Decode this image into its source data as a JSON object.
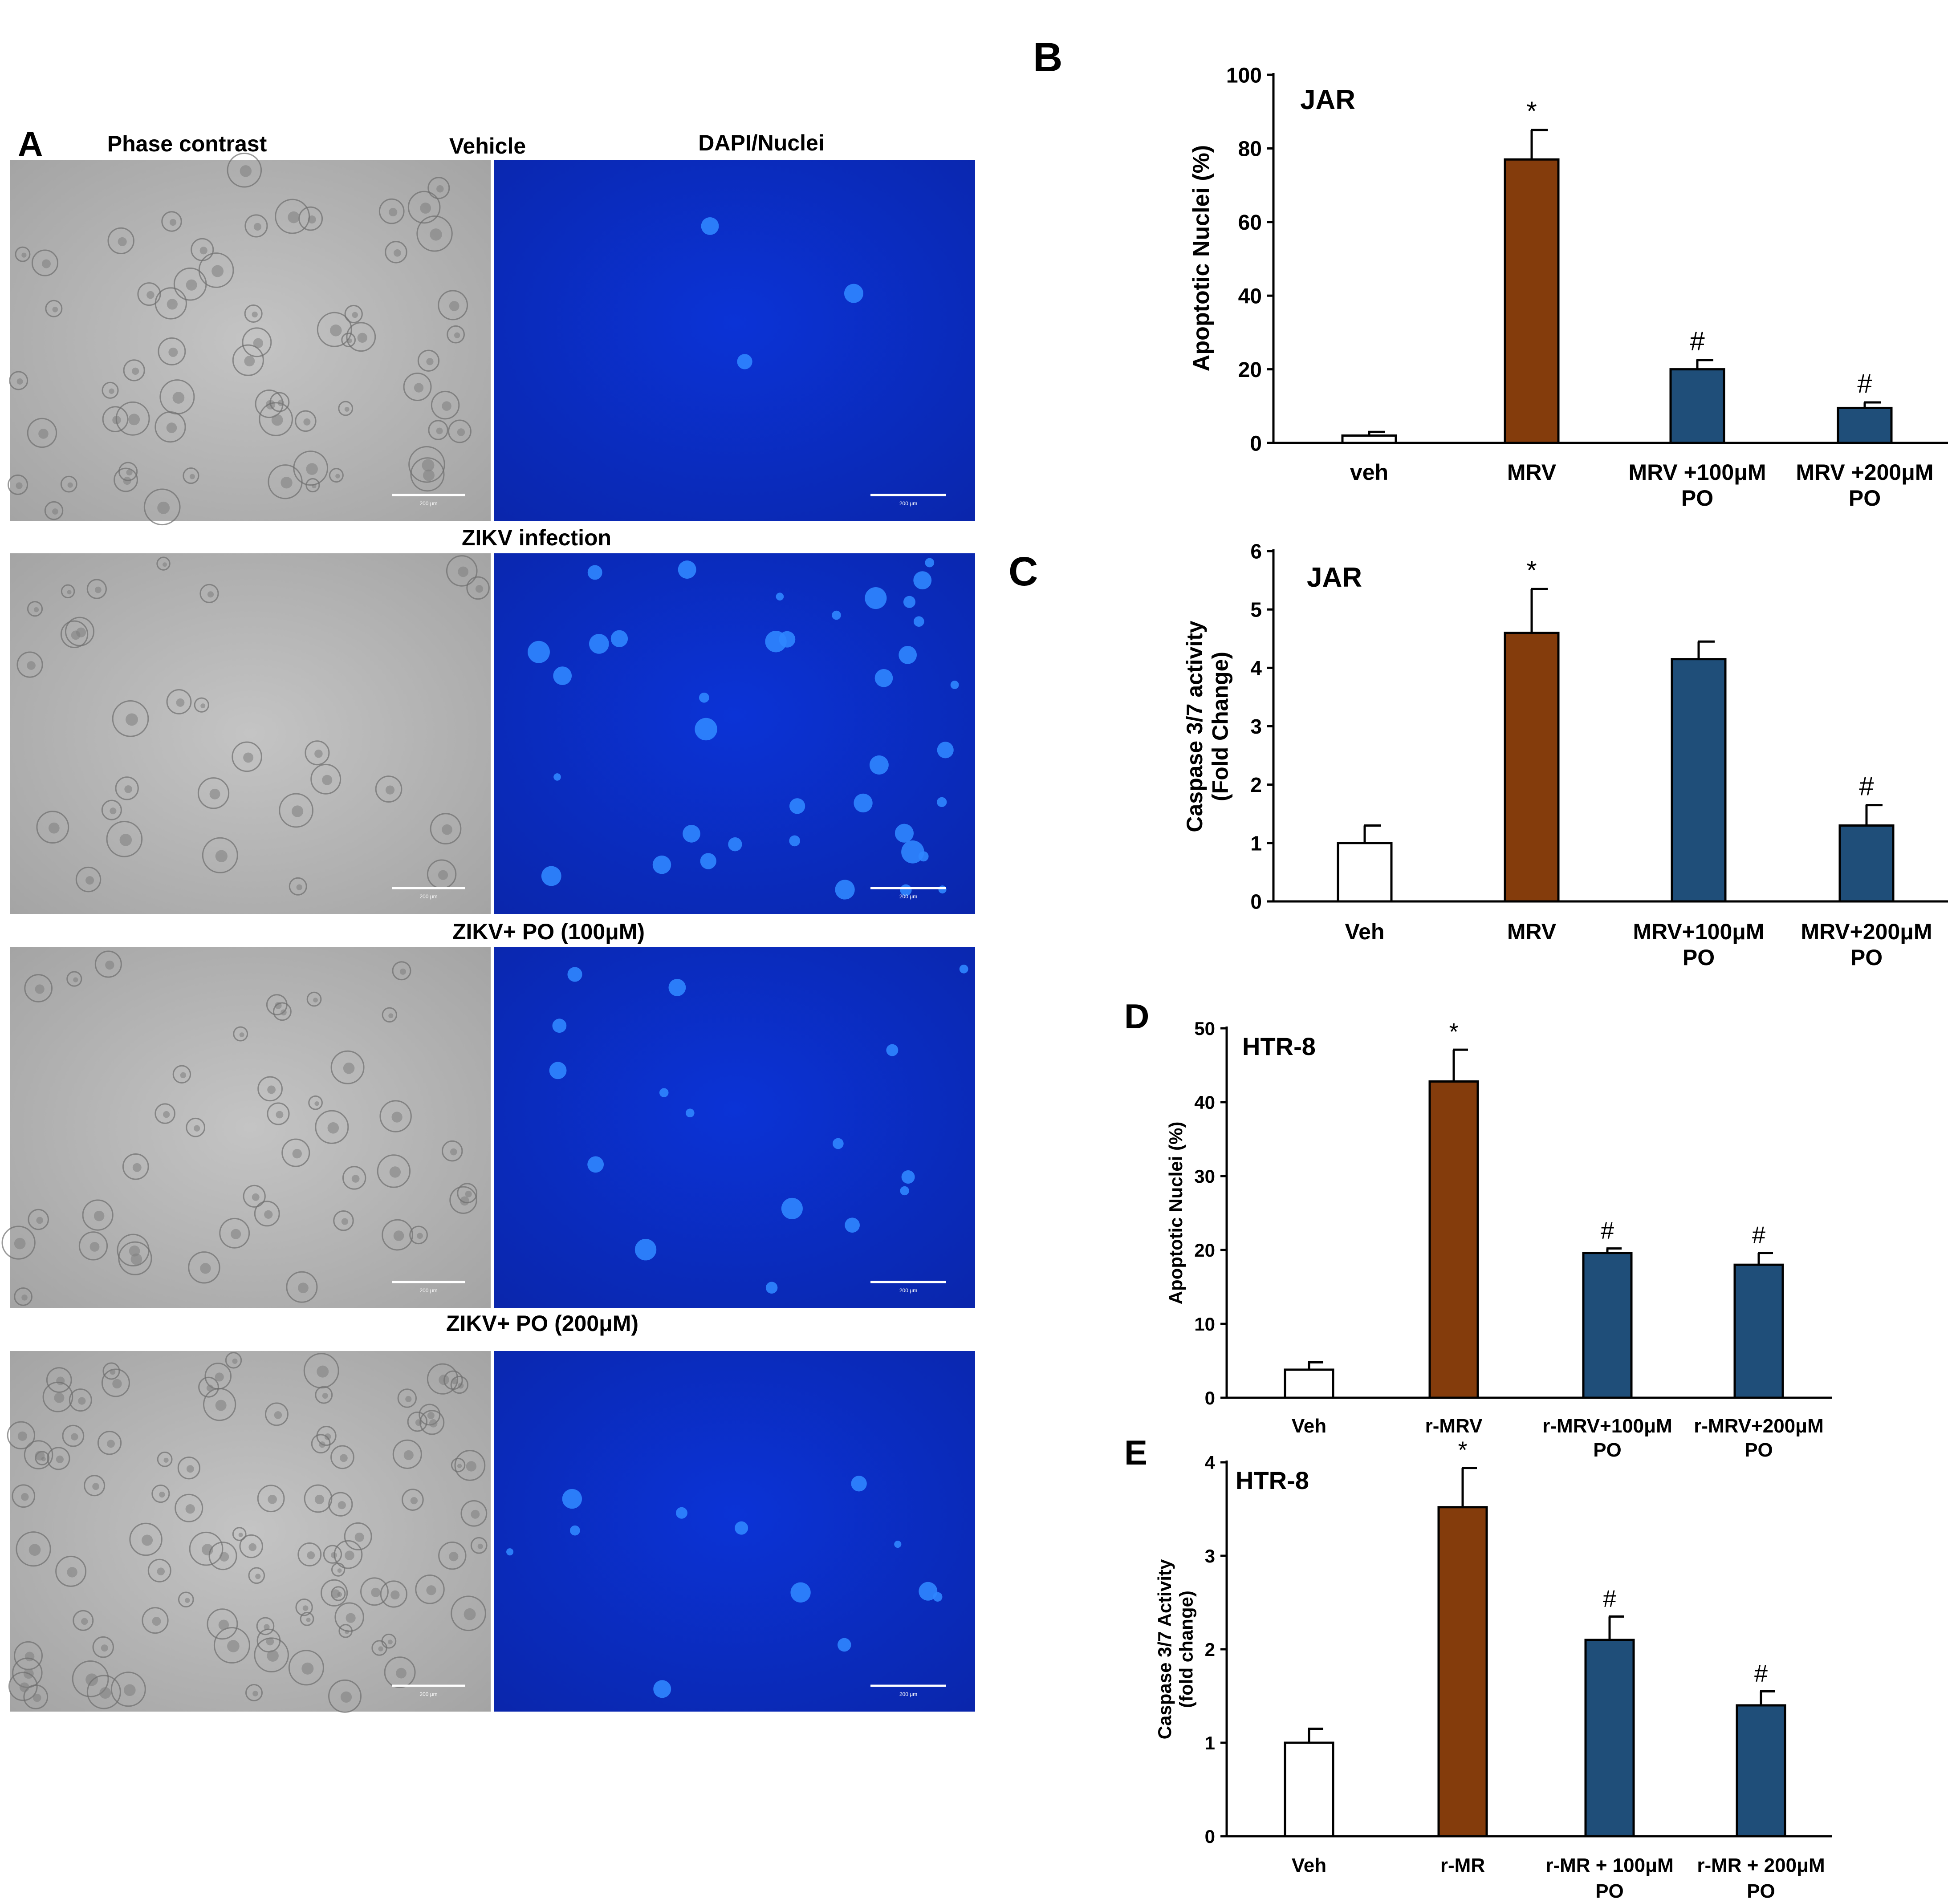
{
  "panel_a": {
    "letter": "A",
    "column_headers": [
      "Phase contrast",
      "Vehicle",
      "DAPI/Nuclei"
    ],
    "row_labels": [
      "ZIKV infection",
      "ZIKV+ PO (100μM)",
      "ZIKV+ PO (200μM)"
    ],
    "scale_bar_text": "200 μm"
  },
  "colors": {
    "veh": "#ffffff",
    "mrv": "#843c0c",
    "po": "#1f4e79",
    "dapi": "#0a2fd0",
    "phase": "#a9a9a9"
  },
  "chart_data": [
    {
      "panel": "B",
      "type": "bar",
      "annotation": "JAR",
      "ylabel": "Apoptotic Nuclei (%)",
      "xlabel": "",
      "ylim": [
        0,
        100
      ],
      "yticks": [
        0,
        20,
        40,
        60,
        80,
        100
      ],
      "categories": [
        [
          "veh"
        ],
        [
          "MRV"
        ],
        [
          "MRV +100μM",
          "PO"
        ],
        [
          "MRV +200μM",
          "PO"
        ]
      ],
      "values": [
        2,
        77,
        20,
        9.5
      ],
      "errors": [
        1,
        8,
        2.5,
        1.5
      ],
      "marks": [
        "",
        "*",
        "#",
        "#"
      ],
      "fills": [
        "veh",
        "mrv",
        "po",
        "po"
      ]
    },
    {
      "panel": "C",
      "type": "bar",
      "annotation": "JAR",
      "ylabel": [
        "Caspase 3/7 activity",
        "(Fold Change)"
      ],
      "xlabel": "",
      "ylim": [
        0,
        6
      ],
      "yticks": [
        0,
        1,
        2,
        3,
        4,
        5,
        6
      ],
      "categories": [
        [
          "Veh"
        ],
        [
          "MRV"
        ],
        [
          "MRV+100μM",
          "PO"
        ],
        [
          "MRV+200μM",
          "PO"
        ]
      ],
      "values": [
        1.0,
        4.6,
        4.15,
        1.3
      ],
      "errors": [
        0.3,
        0.75,
        0.3,
        0.35
      ],
      "marks": [
        "",
        "*",
        "",
        "#"
      ],
      "fills": [
        "veh",
        "mrv",
        "po",
        "po"
      ]
    },
    {
      "panel": "D",
      "type": "bar",
      "annotation": "HTR-8",
      "ylabel": "Apoptotic Nuclei (%)",
      "xlabel": "",
      "ylim": [
        0,
        50
      ],
      "yticks": [
        0,
        10,
        20,
        30,
        40,
        50
      ],
      "categories": [
        [
          "Veh"
        ],
        [
          "r-MRV"
        ],
        [
          "r-MRV+100μM",
          "PO"
        ],
        [
          "r-MRV+200μM",
          "PO"
        ]
      ],
      "values": [
        3.8,
        42.8,
        19.6,
        18.0
      ],
      "errors": [
        1.0,
        4.3,
        0.6,
        1.6
      ],
      "marks": [
        "",
        "*",
        "#",
        "#"
      ],
      "fills": [
        "veh",
        "mrv",
        "po",
        "po"
      ]
    },
    {
      "panel": "E",
      "type": "bar",
      "annotation": "HTR-8",
      "ylabel": [
        "Caspase 3/7 Activity",
        "(fold change)"
      ],
      "xlabel": "",
      "ylim": [
        0,
        4
      ],
      "yticks": [
        0,
        1,
        2,
        3,
        4
      ],
      "categories": [
        [
          "Veh"
        ],
        [
          "r-MR"
        ],
        [
          "r-MR + 100μM",
          "PO"
        ],
        [
          "r-MR + 200μM",
          "PO"
        ]
      ],
      "values": [
        1.0,
        3.52,
        2.1,
        1.4
      ],
      "errors": [
        0.15,
        0.42,
        0.25,
        0.15
      ],
      "marks": [
        "",
        "*",
        "#",
        "#"
      ],
      "fills": [
        "veh",
        "mrv",
        "po",
        "po"
      ]
    }
  ]
}
